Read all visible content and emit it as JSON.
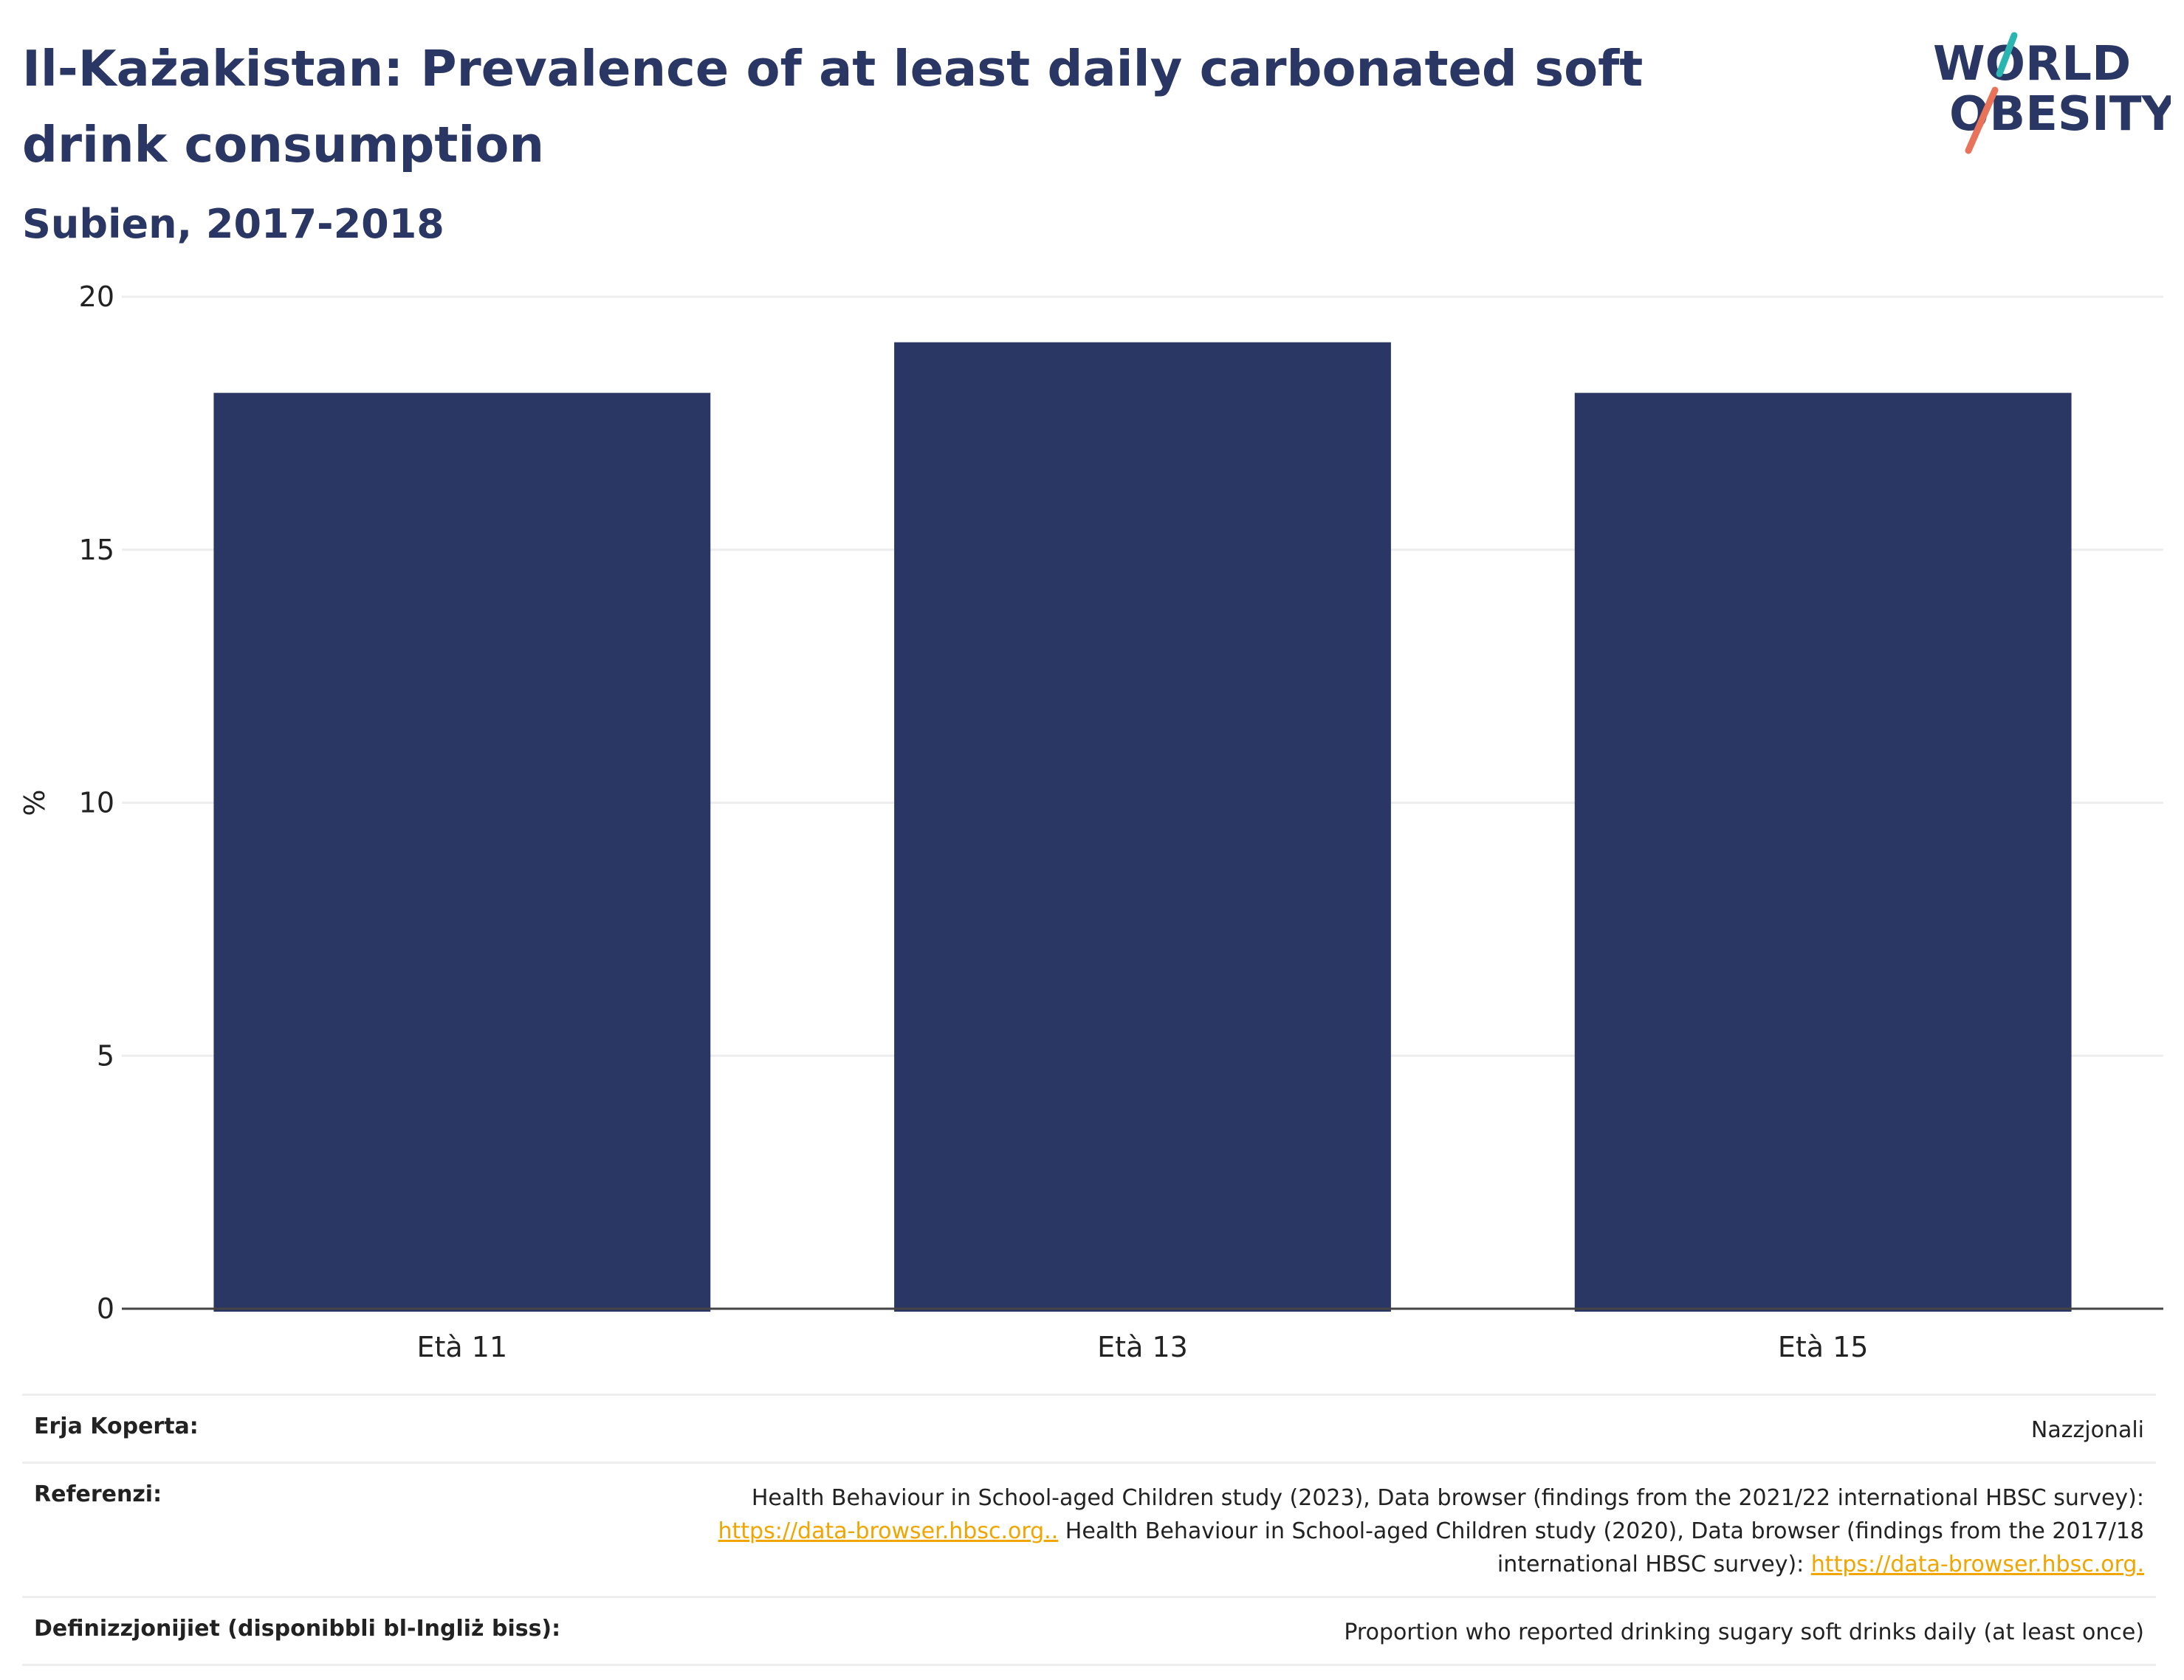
{
  "header": {
    "title": "Il-Każakistan: Prevalence of at least daily carbonated soft drink consumption",
    "subtitle": "Subien, 2017-2018"
  },
  "logo": {
    "line1": "WORLD",
    "line2": "OBESITY",
    "colors": {
      "text": "#2a3663",
      "slash_top": "#2bb5b0",
      "slash_bottom": "#e8735a"
    }
  },
  "colors": {
    "bar": "#2a3663",
    "grid": "#eeeeee",
    "axis": "#444444",
    "link": "#f0a500"
  },
  "chart_data": {
    "type": "bar",
    "categories": [
      "Età 11",
      "Età 13",
      "Età 15"
    ],
    "values": [
      18.1,
      19.1,
      18.1
    ],
    "ylabel": "%",
    "xlabel": "",
    "ylim": [
      0,
      20
    ],
    "yticks": [
      0,
      5,
      10,
      15,
      20
    ],
    "grid": true,
    "legend": "none"
  },
  "meta": {
    "coverage": {
      "label": "Erja Koperta:",
      "value": "Nazzjonali"
    },
    "references": {
      "label": "Referenzi:",
      "text1": "Health Behaviour in School-aged Children study (2023), Data browser (findings from the 2021/22 international HBSC survey):",
      "link1": "https://data-browser.hbsc.org..",
      "text2": " Health Behaviour in School-aged Children study (2020), Data browser (findings from the 2017/18",
      "text3": "international HBSC survey): ",
      "link2": "https://data-browser.hbsc.org."
    },
    "definitions": {
      "label": "Definizzjonijiet (disponibbli bl-Ingliż biss):",
      "value": "Proportion who reported drinking sugary soft drinks daily (at least once)"
    }
  }
}
